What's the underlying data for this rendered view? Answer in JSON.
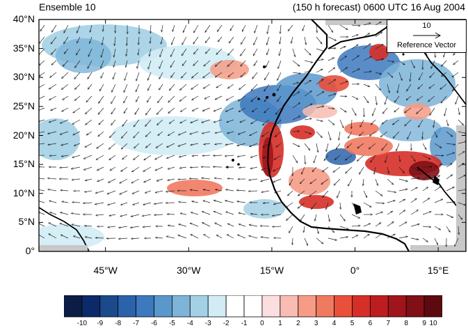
{
  "header": {
    "title_left": "Ensemble 10",
    "title_right": "(150 h forecast) 0600 UTC 16 Aug 2004"
  },
  "map": {
    "lon_range": [
      -57,
      20
    ],
    "lat_range": [
      0,
      40
    ],
    "lat_ticks": [
      {
        "value": 40,
        "label": "40°N"
      },
      {
        "value": 35,
        "label": "35°N"
      },
      {
        "value": 30,
        "label": "30°N"
      },
      {
        "value": 25,
        "label": "25°N"
      },
      {
        "value": 20,
        "label": "20°N"
      },
      {
        "value": 15,
        "label": "15°N"
      },
      {
        "value": 10,
        "label": "10°N"
      },
      {
        "value": 5,
        "label": "5°N"
      },
      {
        "value": 0,
        "label": "0°"
      }
    ],
    "lon_ticks": [
      {
        "value": -45,
        "label": "45°W"
      },
      {
        "value": -30,
        "label": "30°W"
      },
      {
        "value": -15,
        "label": "15°W"
      },
      {
        "value": 0,
        "label": "0°"
      },
      {
        "value": 15,
        "label": "15°E"
      }
    ]
  },
  "reference_vector": {
    "magnitude": "10",
    "label": "Reference Vector"
  },
  "colorbar": {
    "labels": [
      "-10",
      "-9",
      "-8",
      "-7",
      "-6",
      "-5",
      "-4",
      "-3",
      "-2",
      "-1",
      "0",
      "1",
      "2",
      "3",
      "4",
      "5",
      "6",
      "7",
      "8",
      "9",
      "10"
    ],
    "colors": [
      "#0b1d44",
      "#0c2a6a",
      "#1a4a8c",
      "#2b63aa",
      "#3d79bd",
      "#5a98cc",
      "#7db4d8",
      "#a3d0e4",
      "#d2ecf5",
      "#ffffff",
      "#ffffff",
      "#fcdede",
      "#f8bcb2",
      "#f59b86",
      "#f07a60",
      "#e8503a",
      "#d62f27",
      "#bd1d1f",
      "#a0151b",
      "#801016",
      "#5c0a0f"
    ]
  }
}
